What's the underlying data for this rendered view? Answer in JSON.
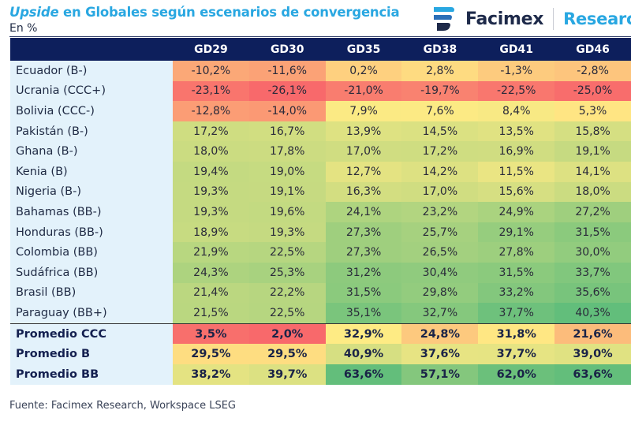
{
  "header": {
    "title_italic": "Upside",
    "title_rest": " en Globales según escenarios de convergencia",
    "subtitle": "En %",
    "logo_brand": "Facimex",
    "logo_division": "Research",
    "logo_icon": "facimex-logo-icon"
  },
  "colors": {
    "header_bg": "#0d1f5c",
    "label_bg": "#e3f2fb",
    "title_accent": "#29a7e1",
    "scale_low": "#f8696b",
    "scale_mid": "#ffeb84",
    "scale_high": "#63be7b"
  },
  "footer": {
    "source": "Fuente: Facimex Research, Workspace LSEG"
  },
  "chart_data": {
    "type": "heatmap",
    "title": "Upside en Globales según escenarios de convergencia",
    "subtitle": "En %",
    "unit": "%",
    "columns": [
      "GD29",
      "GD30",
      "GD35",
      "GD38",
      "GD41",
      "GD46"
    ],
    "rows": [
      {
        "label": "Ecuador (B-)",
        "values": [
          -10.2,
          -11.6,
          0.2,
          2.8,
          -1.3,
          -2.8
        ]
      },
      {
        "label": "Ucrania (CCC+)",
        "values": [
          -23.1,
          -26.1,
          -21.0,
          -19.7,
          -22.5,
          -25.0
        ]
      },
      {
        "label": "Bolivia (CCC-)",
        "values": [
          -12.8,
          -14.0,
          7.9,
          7.6,
          8.4,
          5.3
        ]
      },
      {
        "label": "Pakistán (B-)",
        "values": [
          17.2,
          16.7,
          13.9,
          14.5,
          13.5,
          15.8
        ]
      },
      {
        "label": "Ghana (B-)",
        "values": [
          18.0,
          17.8,
          17.0,
          17.2,
          16.9,
          19.1
        ]
      },
      {
        "label": "Kenia (B)",
        "values": [
          19.4,
          19.0,
          12.7,
          14.2,
          11.5,
          14.1
        ]
      },
      {
        "label": "Nigeria (B-)",
        "values": [
          19.3,
          19.1,
          16.3,
          17.0,
          15.6,
          18.0
        ]
      },
      {
        "label": "Bahamas (BB-)",
        "values": [
          19.3,
          19.6,
          24.1,
          23.2,
          24.9,
          27.2
        ]
      },
      {
        "label": "Honduras (BB-)",
        "values": [
          18.9,
          19.3,
          27.3,
          25.7,
          29.1,
          31.5
        ]
      },
      {
        "label": "Colombia (BB)",
        "values": [
          21.9,
          22.5,
          27.3,
          26.5,
          27.8,
          30.0
        ]
      },
      {
        "label": "Sudáfrica (BB)",
        "values": [
          24.3,
          25.3,
          31.2,
          30.4,
          31.5,
          33.7
        ]
      },
      {
        "label": "Brasil (BB)",
        "values": [
          21.4,
          22.2,
          31.5,
          29.8,
          33.2,
          35.6
        ]
      },
      {
        "label": "Paraguay (BB+)",
        "values": [
          21.5,
          22.5,
          35.1,
          32.7,
          37.7,
          40.3
        ]
      }
    ],
    "averages": [
      {
        "label": "Promedio CCC",
        "values": [
          3.5,
          2.0,
          32.9,
          24.8,
          31.8,
          21.6
        ]
      },
      {
        "label": "Promedio B",
        "values": [
          29.5,
          29.5,
          40.9,
          37.6,
          37.7,
          39.0
        ]
      },
      {
        "label": "Promedio BB",
        "values": [
          38.2,
          39.7,
          63.6,
          57.1,
          62.0,
          63.6
        ]
      }
    ],
    "color_scale": "red-yellow-green (low to high), computed per column; averages section scaled separately",
    "source": "Fuente: Facimex Research, Workspace LSEG"
  }
}
